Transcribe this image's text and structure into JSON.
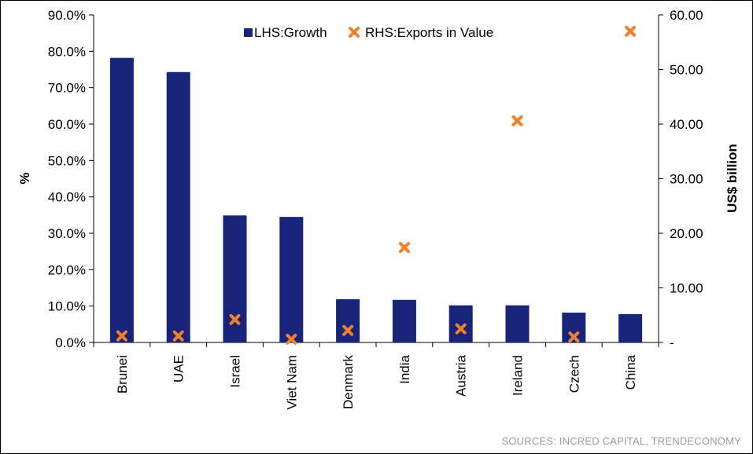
{
  "chart_data": {
    "type": "bar",
    "categories": [
      "Brunei",
      "UAE",
      "Israel",
      "Viet Nam",
      "Denmark",
      "India",
      "Austria",
      "Ireland",
      "Czech",
      "China"
    ],
    "series": [
      {
        "name": "LHS:Growth",
        "type": "bar",
        "axis": "left",
        "values": [
          78.2,
          74.3,
          34.9,
          34.5,
          11.9,
          11.7,
          10.2,
          10.2,
          8.2,
          7.8
        ]
      },
      {
        "name": "RHS:Exports in Value",
        "type": "scatter",
        "axis": "right",
        "values": [
          1.2,
          1.2,
          4.2,
          0.6,
          2.2,
          17.4,
          2.5,
          40.6,
          1.0,
          57.0
        ]
      }
    ],
    "ylabel": "%",
    "y2label": "US$ billion",
    "ylim": [
      0,
      90
    ],
    "y2lim": [
      0,
      60
    ],
    "yticks": [
      "0.0%",
      "10.0%",
      "20.0%",
      "30.0%",
      "40.0%",
      "50.0%",
      "60.0%",
      "70.0%",
      "80.0%",
      "90.0%"
    ],
    "y2ticks": [
      "-",
      "10.00",
      "20.00",
      "30.00",
      "40.00",
      "50.00",
      "60.00"
    ],
    "legend_position": "top",
    "colors": {
      "bar": "#17247a",
      "marker": "#f07f2e",
      "axis": "#000000"
    }
  },
  "source": "SOURCES: INCRED CAPITAL, TRENDECONOMY"
}
